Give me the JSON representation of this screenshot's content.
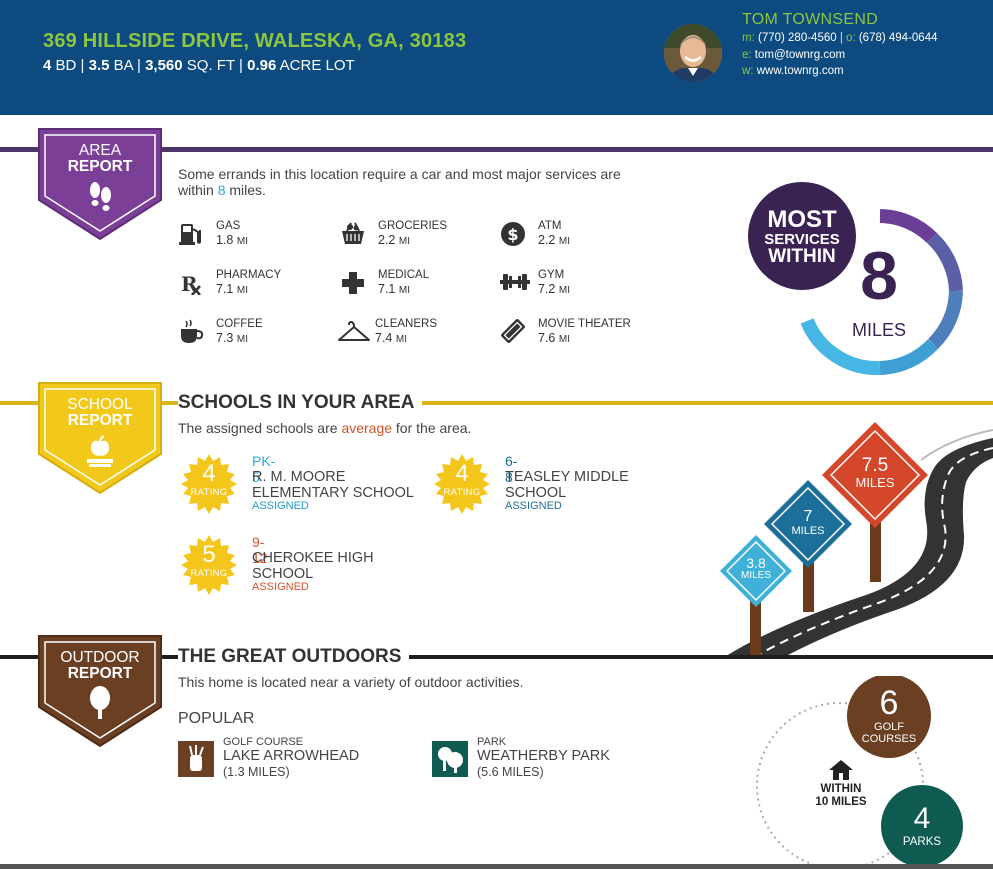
{
  "header": {
    "address": "369 HILLSIDE DRIVE, WALESKA, GA, 30183",
    "beds": "4",
    "beds_unit": "BD",
    "baths": "3.5",
    "baths_unit": "BA",
    "sqft": "3,560",
    "sqft_unit": "SQ. FT",
    "lot": "0.96",
    "lot_unit": "ACRE LOT",
    "sep": "|"
  },
  "agent": {
    "name": "TOM TOWNSEND",
    "m_key": "m:",
    "mobile": "(770) 280-4560",
    "o_key": "o:",
    "office": "(678) 494-0644",
    "e_key": "e:",
    "email": "tom@townrg.com",
    "w_key": "w:",
    "web": "www.townrg.com"
  },
  "area": {
    "badge_l1": "AREA",
    "badge_l2": "REPORT",
    "desc_a": "Some errands in this location require a car and most major services are",
    "desc_b": "within",
    "desc_num": "8",
    "desc_c": "miles.",
    "unit": "MI",
    "amenities": [
      {
        "label": "GAS",
        "dist": "1.8",
        "icon": "gas-pump-icon"
      },
      {
        "label": "GROCERIES",
        "dist": "2.2",
        "icon": "grocery-basket-icon"
      },
      {
        "label": "ATM",
        "dist": "2.2",
        "icon": "dollar-icon"
      },
      {
        "label": "PHARMACY",
        "dist": "7.1",
        "icon": "rx-icon"
      },
      {
        "label": "MEDICAL",
        "dist": "7.1",
        "icon": "medical-cross-icon"
      },
      {
        "label": "GYM",
        "dist": "7.2",
        "icon": "dumbbell-icon"
      },
      {
        "label": "COFFEE",
        "dist": "7.3",
        "icon": "coffee-cup-icon"
      },
      {
        "label": "CLEANERS",
        "dist": "7.4",
        "icon": "hanger-icon"
      },
      {
        "label": "MOVIE THEATER",
        "dist": "7.6",
        "icon": "ticket-icon"
      }
    ],
    "ring": {
      "l1": "MOST",
      "l2": "SERVICES",
      "l3": "WITHIN",
      "value": "8",
      "unit": "MILES",
      "colors": [
        "#6a3f95",
        "#5a5fa8",
        "#4e7fbc",
        "#3f9ed4",
        "#46b6e4"
      ]
    }
  },
  "schools": {
    "badge_l1": "SCHOOL",
    "badge_l2": "REPORT",
    "title": "SCHOOLS IN YOUR AREA",
    "desc_a": "The assigned schools are",
    "desc_hl": "average",
    "desc_b": "for the area.",
    "rating_label": "RATING",
    "list": [
      {
        "rating": "4",
        "grades": "PK-5",
        "name1": "R. M. MOORE",
        "name2": "ELEMENTARY SCHOOL",
        "status": "ASSIGNED"
      },
      {
        "rating": "4",
        "grades": "6-8",
        "name1": "TEASLEY MIDDLE",
        "name2": "SCHOOL",
        "status": "ASSIGNED"
      },
      {
        "rating": "5",
        "grades": "9-12",
        "name1": "CHEROKEE HIGH",
        "name2": "SCHOOL",
        "status": "ASSIGNED"
      }
    ],
    "signs": [
      {
        "value": "3.8",
        "unit": "MILES"
      },
      {
        "value": "7",
        "unit": "MILES"
      },
      {
        "value": "7.5",
        "unit": "MILES"
      }
    ]
  },
  "outdoors": {
    "badge_l1": "OUTDOOR",
    "badge_l2": "REPORT",
    "title": "THE GREAT OUTDOORS",
    "desc": "This home is located near a variety of outdoor activities.",
    "popular": "POPULAR",
    "items": [
      {
        "type": "GOLF COURSE",
        "name": "LAKE ARROWHEAD",
        "dist": "(1.3 MILES)",
        "icon": "golf-bag-icon"
      },
      {
        "type": "PARK",
        "name": "WEATHERBY PARK",
        "dist": "(5.6 MILES)",
        "icon": "park-tree-icon"
      }
    ],
    "within_l1": "WITHIN",
    "within_l2": "10 MILES",
    "golf_count": "6",
    "golf_l1": "GOLF",
    "golf_l2": "COURSES",
    "parks_count": "4",
    "parks_label": "PARKS"
  }
}
